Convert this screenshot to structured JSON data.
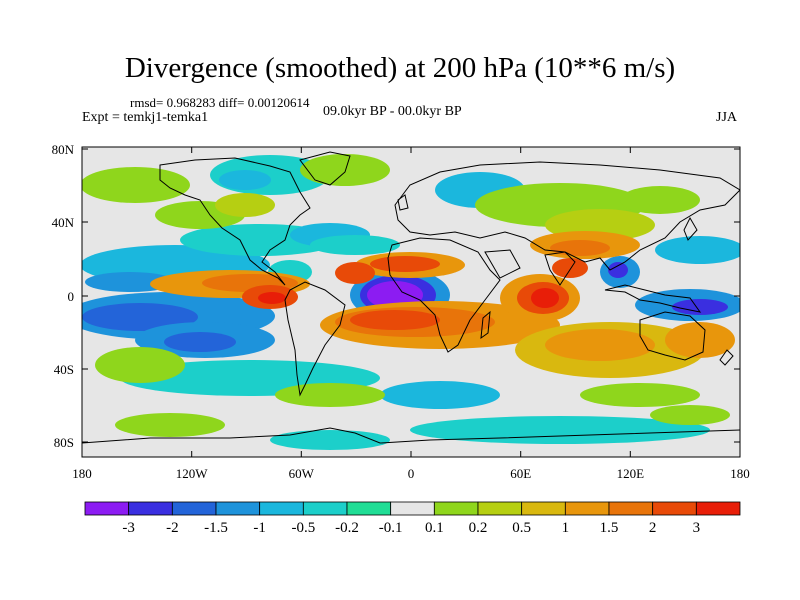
{
  "title": "Divergence (smoothed) at 200 hPa (10**6 m/s)",
  "stats": "rmsd= 0.968283 diff= 0.00120614",
  "experiment": "Expt = temkj1-temka1",
  "period": "09.0kyr BP - 00.0kyr BP",
  "season": "JJA",
  "lon_ticks": [
    "180",
    "120W",
    "60W",
    "0",
    "60E",
    "120E",
    "180"
  ],
  "lat_ticks": [
    "80N",
    "40N",
    "0",
    "40S",
    "80S"
  ],
  "colorbar": {
    "colors": [
      "#8c1cf2",
      "#3a2fe0",
      "#2364d9",
      "#1e93db",
      "#1bb7dd",
      "#1ccfca",
      "#20dd95",
      "#e6e6e6",
      "#8fd61c",
      "#b6cf12",
      "#d9b80f",
      "#e8960c",
      "#e8740a",
      "#e84a08",
      "#e81e08"
    ],
    "labels": [
      "-3",
      "-2",
      "-1.5",
      "-1",
      "-0.5",
      "-0.2",
      "-0.1",
      "0.1",
      "0.2",
      "0.5",
      "1",
      "1.5",
      "2",
      "3"
    ]
  }
}
